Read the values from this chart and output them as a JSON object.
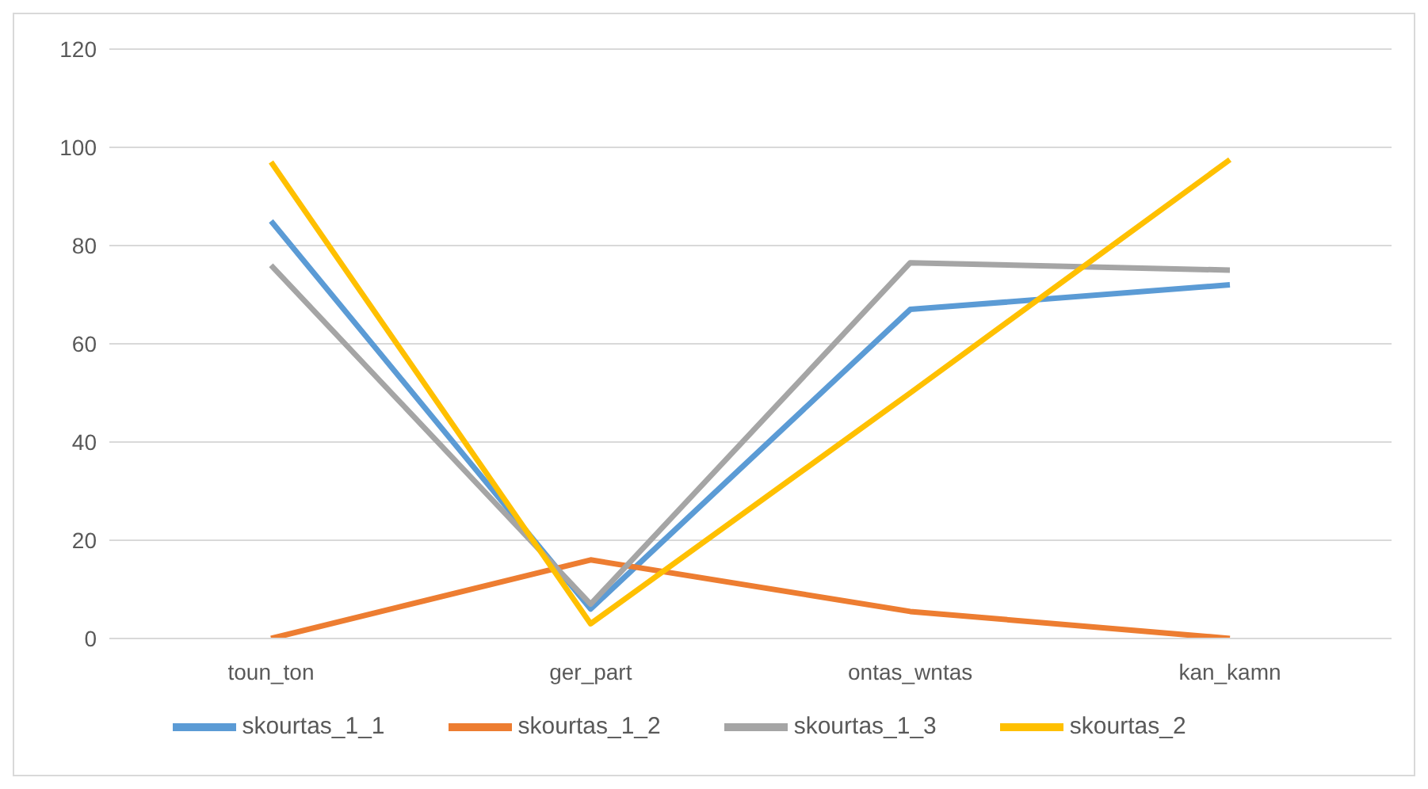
{
  "chart_data": {
    "type": "line",
    "categories": [
      "toun_ton",
      "ger_part",
      "ontas_wntas",
      "kan_kamn"
    ],
    "series": [
      {
        "name": "skourtas_1_1",
        "color": "#5b9bd5",
        "values": [
          85,
          6,
          67,
          72
        ]
      },
      {
        "name": "skourtas_1_2",
        "color": "#ed7d31",
        "values": [
          0,
          16,
          5.5,
          0
        ]
      },
      {
        "name": "skourtas_1_3",
        "color": "#a5a5a5",
        "values": [
          76,
          7,
          76.5,
          75
        ]
      },
      {
        "name": "skourtas_2",
        "color": "#ffc000",
        "values": [
          97,
          3,
          50,
          97.5
        ]
      }
    ],
    "ylim": [
      0,
      120
    ],
    "yticks": [
      0,
      20,
      40,
      60,
      80,
      100,
      120
    ],
    "grid": "y",
    "legend": "bottom",
    "marker": "none",
    "line_style": "solid"
  }
}
